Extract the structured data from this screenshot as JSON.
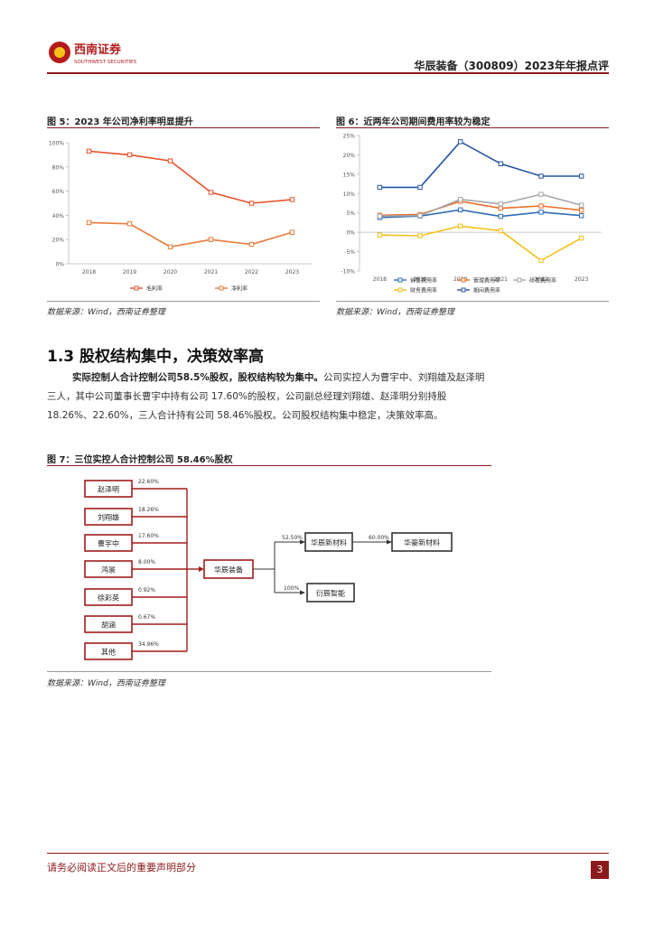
{
  "header": {
    "logo_cn": "西南证券",
    "logo_en": "SOUTHWEST SECURITIES",
    "title": "华辰装备（300809）2023年年报点评"
  },
  "fig5": {
    "title": "图 5：2023 年公司净利率明显提升",
    "source": "数据来源：Wind，西南证券整理"
  },
  "fig6": {
    "title": "图 6：近两年公司期间费用率较为稳定",
    "source": "数据来源：Wind，西南证券整理"
  },
  "section": {
    "title": "1.3 股权结构集中，决策效率高",
    "para_bold": "实际控制人合计控制公司58.5%股权，股权结构较为集中。",
    "para_rest": "公司实控人为曹宇中、刘翔雄及赵泽明三人，其中公司董事长曹宇中持有公司 17.60%的股权，公司副总经理刘翔雄、赵泽明分别持股 18.26%、22.60%，三人合计持有公司 58.46%股权。公司股权结构集中稳定，决策效率高。"
  },
  "fig7": {
    "title": "图 7：三位实控人合计控制公司 58.46%股权",
    "source": "数据来源：Wind，西南证券整理",
    "shareholders": [
      {
        "name": "赵泽明",
        "pct": "22.60%"
      },
      {
        "name": "刘翔雄",
        "pct": "18.26%"
      },
      {
        "name": "曹宇中",
        "pct": "17.60%"
      },
      {
        "name": "鸿景",
        "pct": "8.00%"
      },
      {
        "name": "徐彩英",
        "pct": "0.92%"
      },
      {
        "name": "胡涵",
        "pct": "0.67%"
      },
      {
        "name": "其他",
        "pct": "34.96%"
      }
    ],
    "center": "华辰装备",
    "sub1": {
      "name": "华辰新材料",
      "pct": "52.50%"
    },
    "sub1b": {
      "name": "华豪新材料",
      "pct": "60.00%"
    },
    "sub2": {
      "name": "衍辰智能",
      "pct": "100%"
    }
  },
  "footer": {
    "text": "请务必阅读正文后的重要声明部分",
    "page": "3"
  },
  "chart_data": [
    {
      "type": "line",
      "x": [
        "2018",
        "2019",
        "2020",
        "2021",
        "2022",
        "2023"
      ],
      "yticks": [
        "0%",
        "20%",
        "40%",
        "60%",
        "80%",
        "100%"
      ],
      "ylim": [
        0,
        100
      ],
      "series": [
        {
          "name": "毛利率",
          "color": "#e8502a",
          "values": [
            93,
            90,
            85,
            59,
            50,
            53
          ]
        },
        {
          "name": "净利率",
          "color": "#e87a3a",
          "values": [
            34,
            33,
            14,
            20,
            16,
            26
          ]
        }
      ]
    },
    {
      "type": "line",
      "x": [
        "2018",
        "2019",
        "2020",
        "2021",
        "2022",
        "2023"
      ],
      "yticks": [
        "-10%",
        "-5%",
        "0%",
        "5%",
        "10%",
        "15%",
        "20%",
        "25%"
      ],
      "ylim": [
        -10,
        25
      ],
      "series": [
        {
          "name": "销售费用率",
          "color": "#2e6db4",
          "values": [
            3.8,
            4.2,
            5.8,
            4.1,
            5.2,
            4.3
          ]
        },
        {
          "name": "管理费用率",
          "color": "#e8702a",
          "values": [
            4.4,
            4.6,
            8.0,
            6.2,
            6.8,
            5.7
          ]
        },
        {
          "name": "研发费用率",
          "color": "#a6a6a6",
          "values": [
            4.2,
            4.3,
            8.5,
            7.3,
            9.8,
            7.0
          ]
        },
        {
          "name": "财务费用率",
          "color": "#f2c21a",
          "values": [
            -0.7,
            -0.9,
            1.6,
            0.4,
            -7.3,
            -1.5
          ]
        },
        {
          "name": "期间费用率",
          "color": "#2554a0",
          "values": [
            11.6,
            11.6,
            23.4,
            17.7,
            14.5,
            14.5
          ]
        }
      ]
    }
  ]
}
